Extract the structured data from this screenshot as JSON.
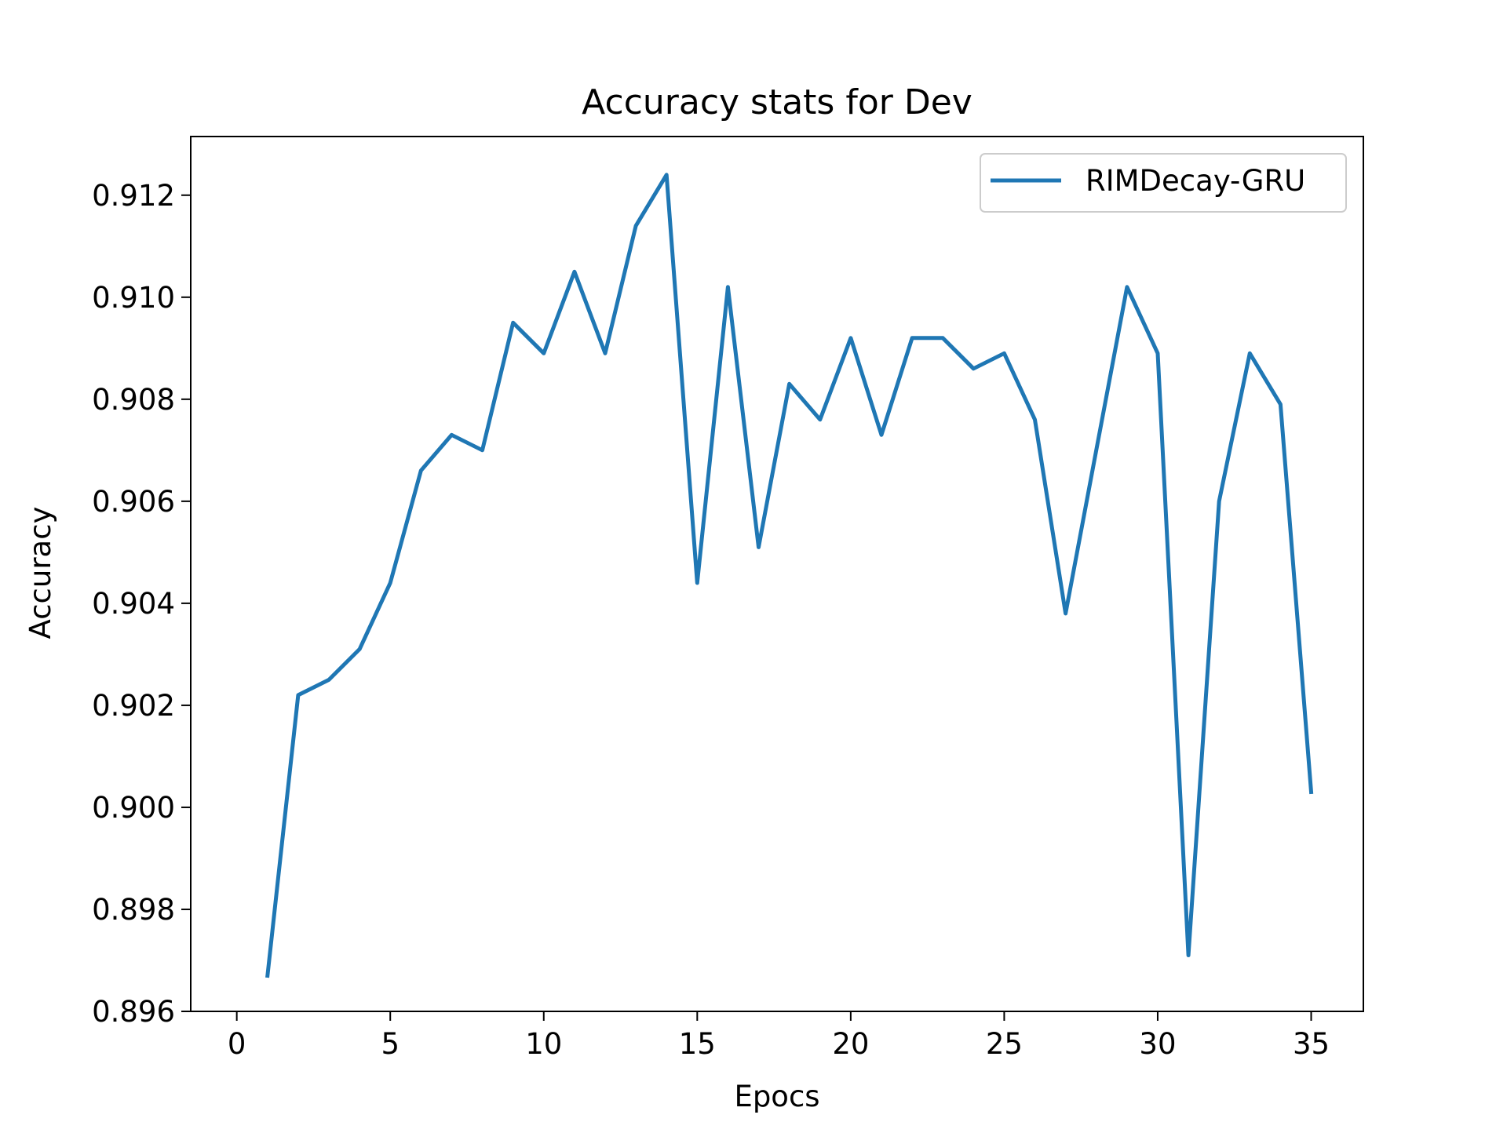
{
  "chart_data": {
    "type": "line",
    "title": "Accuracy stats for Dev",
    "xlabel": "Epocs",
    "ylabel": "Accuracy",
    "xlim": [
      -1.5,
      36.7
    ],
    "ylim": [
      0.896,
      0.91315
    ],
    "xticks": [
      0,
      5,
      10,
      15,
      20,
      25,
      30,
      35
    ],
    "xtick_labels": [
      "0",
      "5",
      "10",
      "15",
      "20",
      "25",
      "30",
      "35"
    ],
    "yticks": [
      0.896,
      0.898,
      0.9,
      0.902,
      0.904,
      0.906,
      0.908,
      0.91,
      0.912
    ],
    "ytick_labels": [
      "0.896",
      "0.898",
      "0.900",
      "0.902",
      "0.904",
      "0.906",
      "0.908",
      "0.910",
      "0.912"
    ],
    "grid": false,
    "legend_position": "top-right",
    "series": [
      {
        "name": "RIMDecay-GRU",
        "color": "#1f77b4",
        "x": [
          1,
          2,
          3,
          4,
          5,
          6,
          7,
          8,
          9,
          10,
          11,
          12,
          13,
          14,
          15,
          16,
          17,
          18,
          19,
          20,
          21,
          22,
          23,
          24,
          25,
          26,
          27,
          28,
          29,
          30,
          31,
          32,
          33,
          34,
          35
        ],
        "y": [
          0.8967,
          0.9022,
          0.9025,
          0.9031,
          0.9044,
          0.9066,
          0.9073,
          0.907,
          0.9095,
          0.9089,
          0.9105,
          0.9089,
          0.9114,
          0.9124,
          0.9044,
          0.9102,
          0.9051,
          0.9083,
          0.9076,
          0.9092,
          0.9073,
          0.9092,
          0.9092,
          0.9086,
          0.9089,
          0.9076,
          0.9038,
          0.907,
          0.9102,
          0.9089,
          0.8971,
          0.906,
          0.9089,
          0.9079,
          0.9003
        ]
      }
    ]
  }
}
